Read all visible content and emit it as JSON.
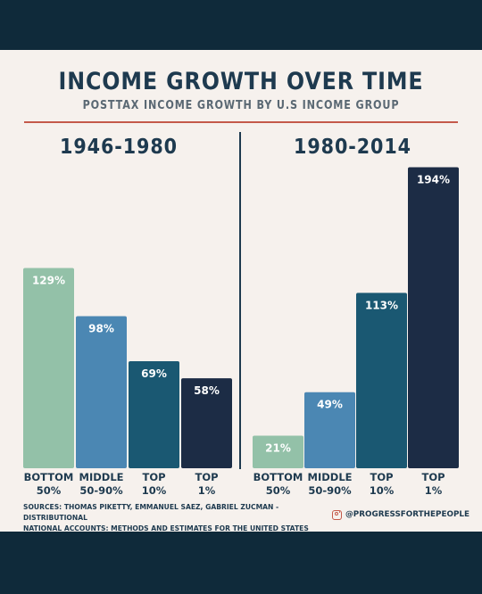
{
  "header": {
    "title": "INCOME GROWTH OVER TIME",
    "subtitle": "POSTTAX INCOME GROWTH BY U.S INCOME GROUP"
  },
  "colors": {
    "bottom_50": "#93c1a8",
    "middle_50_90": "#4b87b3",
    "top_10": "#1a5872",
    "top_1": "#1c2c45",
    "text": "#1e3a4f",
    "accent": "#c45a4a"
  },
  "chart_data": [
    {
      "type": "bar",
      "title": "1946-1980",
      "categories": [
        [
          "BOTTOM",
          "50%"
        ],
        [
          "MIDDLE",
          "50-90%"
        ],
        [
          "TOP",
          "10%"
        ],
        [
          "TOP",
          "1%"
        ]
      ],
      "values": [
        129,
        98,
        69,
        58
      ],
      "value_labels": [
        "129%",
        "98%",
        "69%",
        "58%"
      ],
      "ylim": [
        0,
        200
      ],
      "grid": false
    },
    {
      "type": "bar",
      "title": "1980-2014",
      "categories": [
        [
          "BOTTOM",
          "50%"
        ],
        [
          "MIDDLE",
          "50-90%"
        ],
        [
          "TOP",
          "10%"
        ],
        [
          "TOP",
          "1%"
        ]
      ],
      "values": [
        21,
        49,
        113,
        194
      ],
      "value_labels": [
        "21%",
        "49%",
        "113%",
        "194%"
      ],
      "ylim": [
        0,
        200
      ],
      "grid": false
    }
  ],
  "footer": {
    "sources_line1": "Sources: Thomas Piketty, Emmanuel Saez, Gabriel Zucman - Distributional",
    "sources_line2": "National Accounts: Methods and Estimates for the United States",
    "social_handle": "@PROGRESSFORTHEPEOPLE",
    "social_icon": "instagram-icon"
  }
}
